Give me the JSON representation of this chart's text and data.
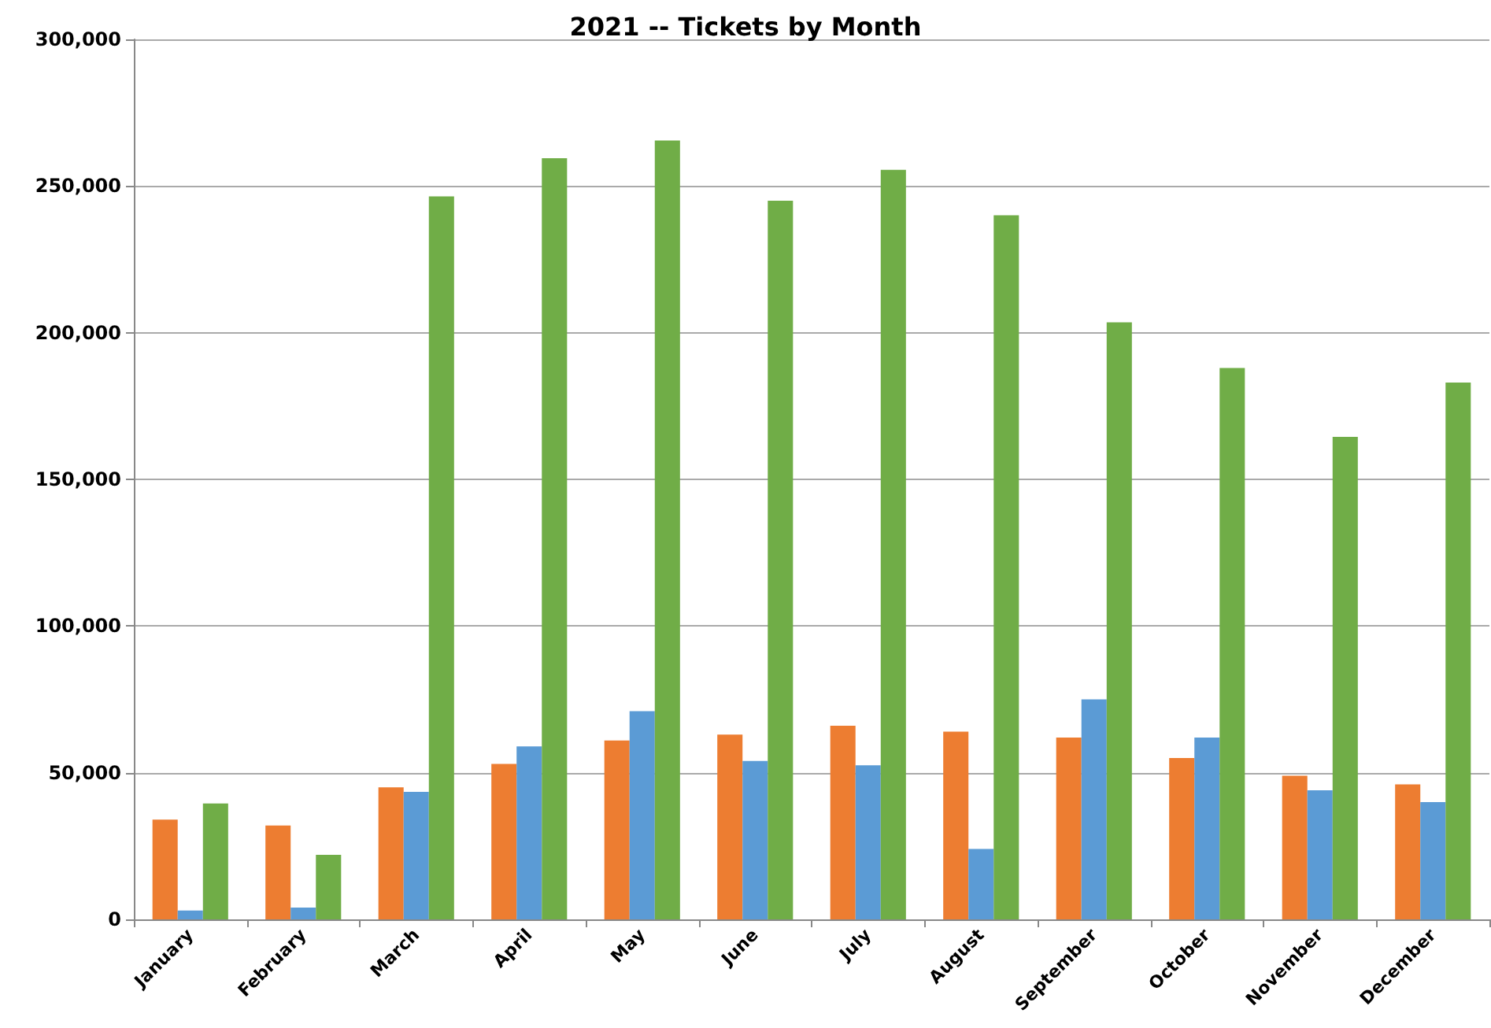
{
  "chart_data": {
    "type": "bar",
    "title": "2021 -- Tickets by Month",
    "categories": [
      "January",
      "February",
      "March",
      "April",
      "May",
      "June",
      "July",
      "August",
      "September",
      "October",
      "November",
      "December"
    ],
    "series": [
      {
        "color": "#ed7d31",
        "values": [
          34000,
          32000,
          45000,
          53000,
          61000,
          63000,
          66000,
          64000,
          62000,
          55000,
          49000,
          46000
        ]
      },
      {
        "color": "#5b9bd5",
        "values": [
          3000,
          4000,
          43500,
          59000,
          71000,
          54000,
          52500,
          24000,
          75000,
          62000,
          44000,
          40000
        ]
      },
      {
        "color": "#70ad47",
        "values": [
          39500,
          22000,
          246500,
          259500,
          265500,
          245000,
          255500,
          240000,
          203500,
          188000,
          164500,
          183000
        ]
      }
    ],
    "ylim": [
      0,
      300000
    ],
    "yticks": [
      0,
      {
        "value": 50000,
        "label": "50,000"
      },
      {
        "value": 100000,
        "label": "100,000"
      },
      {
        "value": 150000,
        "label": "150,000"
      },
      {
        "value": 200000,
        "label": "200,000"
      },
      {
        "value": 250000,
        "label": "250,000"
      },
      {
        "value": 300000,
        "label": "300,000"
      }
    ],
    "grid": "y"
  }
}
